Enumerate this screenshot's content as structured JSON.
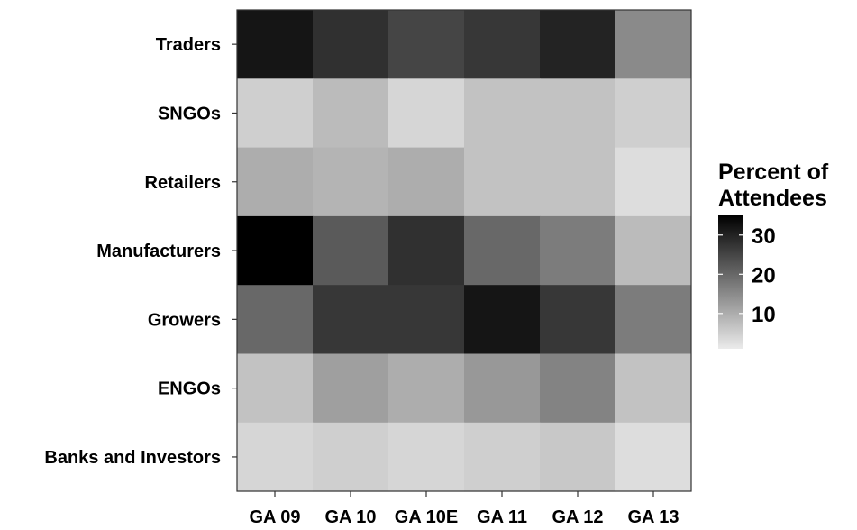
{
  "chart_data": {
    "type": "heatmap",
    "x": [
      "GA 09",
      "GA 10",
      "GA 10E",
      "GA 11",
      "GA 12",
      "GA 13"
    ],
    "y": [
      "Traders",
      "SNGOs",
      "Retailers",
      "Manufacturers",
      "Growers",
      "ENGOs",
      "Banks and Investors"
    ],
    "values": [
      [
        32,
        28,
        25,
        27,
        30,
        15
      ],
      [
        5,
        8,
        4,
        7,
        7,
        5
      ],
      [
        10,
        9,
        10,
        7,
        7,
        3
      ],
      [
        35,
        22,
        28,
        20,
        17,
        8
      ],
      [
        20,
        27,
        27,
        32,
        27,
        17
      ],
      [
        7,
        12,
        10,
        13,
        16,
        7
      ],
      [
        4,
        5,
        4,
        5,
        6,
        3
      ]
    ],
    "legend": {
      "title": [
        "Percent of",
        "Attendees"
      ],
      "ticks": [
        10,
        20,
        30
      ],
      "range": [
        1,
        35
      ],
      "position": "right"
    },
    "colors": {
      "low": "#ebebeb",
      "high": "#000000",
      "panel_border": "#333333"
    }
  }
}
